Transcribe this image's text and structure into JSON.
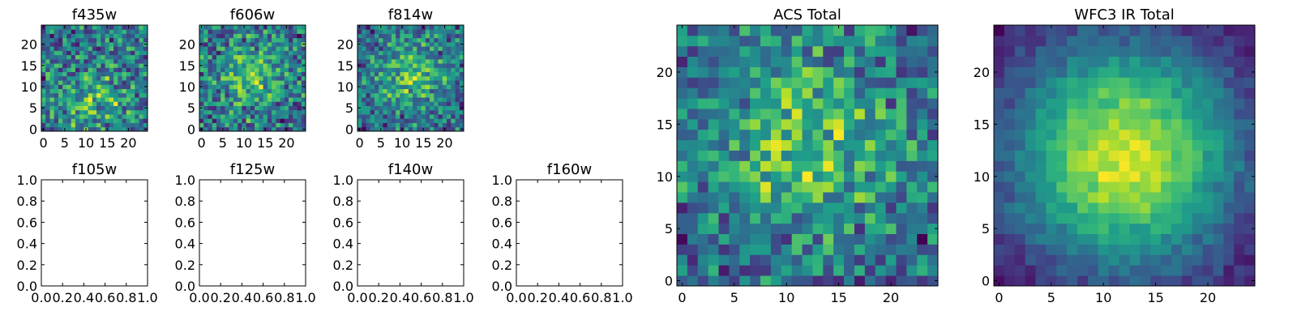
{
  "chart_data": [
    {
      "type": "heatmap",
      "title": "f435w",
      "xlim": [
        -0.5,
        24.5
      ],
      "ylim": [
        -0.5,
        24.5
      ],
      "xticks": [
        0,
        5,
        10,
        15,
        20
      ],
      "yticks": [
        0,
        5,
        10,
        15,
        20
      ],
      "grid": false,
      "colormap": "viridis",
      "peak": [
        12,
        6
      ],
      "noise": 0.9,
      "signal": 0.35,
      "spread": 3.0,
      "seed": 11
    },
    {
      "type": "heatmap",
      "title": "f606w",
      "xlim": [
        -0.5,
        24.5
      ],
      "ylim": [
        -0.5,
        24.5
      ],
      "xticks": [
        0,
        5,
        10,
        15,
        20
      ],
      "yticks": [
        0,
        5,
        10,
        15,
        20
      ],
      "grid": false,
      "colormap": "viridis",
      "peak": [
        12,
        13
      ],
      "noise": 0.85,
      "signal": 0.45,
      "spread": 3.0,
      "seed": 23
    },
    {
      "type": "heatmap",
      "title": "f814w",
      "xlim": [
        -0.5,
        24.5
      ],
      "ylim": [
        -0.5,
        24.5
      ],
      "xticks": [
        0,
        5,
        10,
        15,
        20
      ],
      "yticks": [
        0,
        5,
        10,
        15,
        20
      ],
      "grid": false,
      "colormap": "viridis",
      "peak": [
        12,
        13
      ],
      "noise": 0.8,
      "signal": 0.5,
      "spread": 3.0,
      "seed": 37
    },
    {
      "type": "empty",
      "title": "f105w",
      "xlim": [
        0,
        1
      ],
      "ylim": [
        0,
        1
      ],
      "xticks": [
        "0.0",
        "0.2",
        "0.4",
        "0.6",
        "0.8",
        "1.0"
      ],
      "yticks": [
        "0.0",
        "0.2",
        "0.4",
        "0.6",
        "0.8",
        "1.0"
      ]
    },
    {
      "type": "empty",
      "title": "f125w",
      "xlim": [
        0,
        1
      ],
      "ylim": [
        0,
        1
      ],
      "xticks": [
        "0.0",
        "0.2",
        "0.4",
        "0.6",
        "0.8",
        "1.0"
      ],
      "yticks": [
        "0.0",
        "0.2",
        "0.4",
        "0.6",
        "0.8",
        "1.0"
      ]
    },
    {
      "type": "empty",
      "title": "f140w",
      "xlim": [
        0,
        1
      ],
      "ylim": [
        0,
        1
      ],
      "xticks": [
        "0.0",
        "0.2",
        "0.4",
        "0.6",
        "0.8",
        "1.0"
      ],
      "yticks": [
        "0.0",
        "0.2",
        "0.4",
        "0.6",
        "0.8",
        "1.0"
      ]
    },
    {
      "type": "empty",
      "title": "f160w",
      "xlim": [
        0,
        1
      ],
      "ylim": [
        0,
        1
      ],
      "xticks": [
        "0.0",
        "0.2",
        "0.4",
        "0.6",
        "0.8",
        "1.0"
      ],
      "yticks": [
        "0.0",
        "0.2",
        "0.4",
        "0.6",
        "0.8",
        "1.0"
      ]
    },
    {
      "type": "heatmap",
      "title": "ACS Total",
      "xlim": [
        -0.5,
        24.5
      ],
      "ylim": [
        -0.5,
        24.5
      ],
      "xticks": [
        0,
        5,
        10,
        15,
        20
      ],
      "yticks": [
        0,
        5,
        10,
        15,
        20
      ],
      "grid": false,
      "colormap": "viridis",
      "peak": [
        12,
        13
      ],
      "noise": 0.75,
      "signal": 0.55,
      "spread": 3.5,
      "seed": 51
    },
    {
      "type": "heatmap",
      "title": "WFC3 IR Total",
      "xlim": [
        -0.5,
        24.5
      ],
      "ylim": [
        -0.5,
        24.5
      ],
      "xticks": [
        0,
        5,
        10,
        15,
        20
      ],
      "yticks": [
        0,
        5,
        10,
        15,
        20
      ],
      "grid": false,
      "colormap": "viridis",
      "peak": [
        12,
        12
      ],
      "noise": 0.18,
      "signal": 1.0,
      "spread": 4.0,
      "seed": 77
    }
  ]
}
